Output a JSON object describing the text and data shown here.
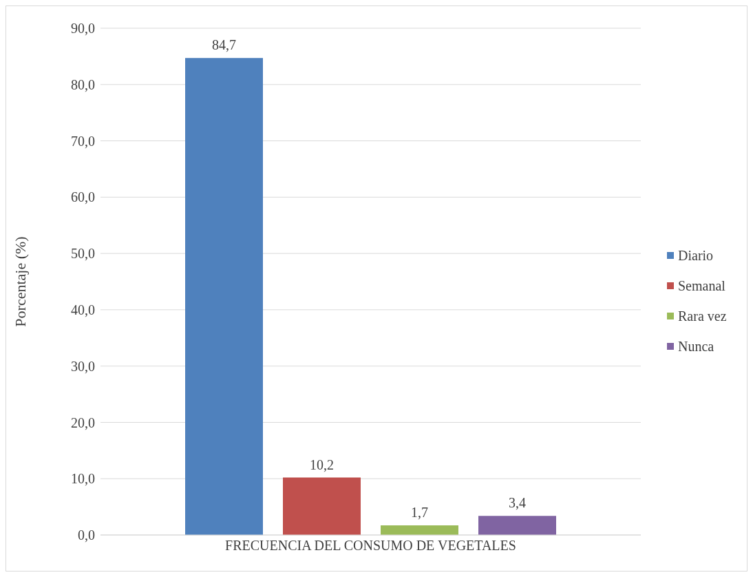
{
  "chart_data": {
    "type": "bar",
    "categories": [
      "FRECUENCIA DEL CONSUMO DE VEGETALES"
    ],
    "ylabel": "Porcentaje (%)",
    "series": [
      {
        "name": "Diario",
        "color": "#4f81bd",
        "values": [
          84.7
        ],
        "value_labels": [
          "84,7"
        ]
      },
      {
        "name": "Semanal",
        "color": "#c0504d",
        "values": [
          10.2
        ],
        "value_labels": [
          "10,2"
        ]
      },
      {
        "name": "Rara vez",
        "color": "#9bbb59",
        "values": [
          1.7
        ],
        "value_labels": [
          "1,7"
        ]
      },
      {
        "name": "Nunca",
        "color": "#8064a2",
        "values": [
          3.4
        ],
        "value_labels": [
          "3,4"
        ]
      }
    ],
    "ylim": [
      0,
      90
    ],
    "yticks": [
      {
        "value": 0,
        "label": "0,0"
      },
      {
        "value": 10,
        "label": "10,0"
      },
      {
        "value": 20,
        "label": "20,0"
      },
      {
        "value": 30,
        "label": "30,0"
      },
      {
        "value": 40,
        "label": "40,0"
      },
      {
        "value": 50,
        "label": "50,0"
      },
      {
        "value": 60,
        "label": "60,0"
      },
      {
        "value": 70,
        "label": "70,0"
      },
      {
        "value": 80,
        "label": "80,0"
      },
      {
        "value": 90,
        "label": "90,0"
      }
    ],
    "grid": "y",
    "legend": "right"
  }
}
